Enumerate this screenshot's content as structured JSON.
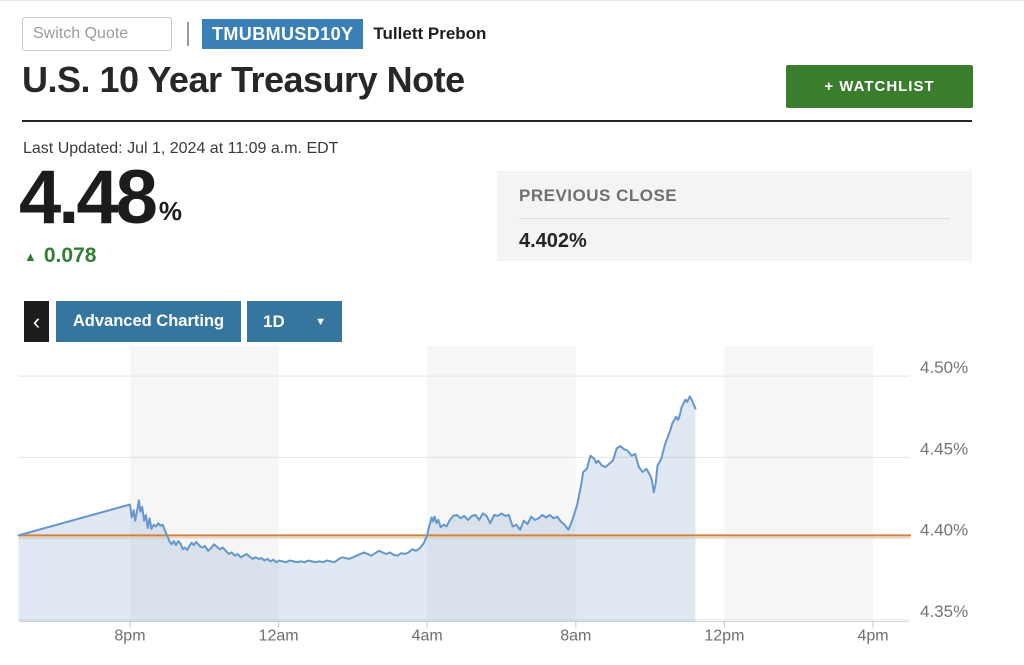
{
  "page": {
    "switch_quote_placeholder": "Switch Quote",
    "ticker": "TMUBMUSD10Y",
    "source": "Tullett Prebon",
    "title": "U.S. 10 Year Treasury Note",
    "watchlist_button": "+ WATCHLIST",
    "last_updated": "Last Updated: Jul 1, 2024 at 11:09 a.m. EDT",
    "price": "4.48",
    "price_unit": "%",
    "change_arrow": "▲",
    "change": "0.078",
    "previous_close_label": "PREVIOUS CLOSE",
    "previous_close_value": "4.402%",
    "toolbar": {
      "back": "‹",
      "advanced_charting": "Advanced Charting",
      "range": "1D",
      "range_caret": "▼"
    }
  },
  "colors": {
    "badge_blue": "#3a7fb5",
    "button_blue": "#36759d",
    "watchlist_green": "#3a7d2c",
    "change_green": "#2f7e33",
    "chart": {
      "line": "#6597cc",
      "fill": "rgba(116,155,201,0.22)",
      "band": "#f6f6f7",
      "grid": "#e4e4e4",
      "axis": "#d8d8d8",
      "tick": "#c4c4c4",
      "prev_close_line": "#cf8440",
      "prev_close_line_light": "#eed0ae",
      "y_label": "#757575",
      "x_label": "#6e6e6e"
    }
  },
  "chart_data": {
    "type": "area",
    "title": "U.S. 10 Year Treasury Note yield, 1D intraday",
    "x_unit": "hours since 5pm ET previous day",
    "xlim": [
      0,
      23.95
    ],
    "ylim": [
      4.349,
      4.5185
    ],
    "y_gridlines": [
      4.35,
      4.4,
      4.45,
      4.5
    ],
    "y_tick_labels": [
      "4.35%",
      "4.40%",
      "4.45%",
      "4.50%"
    ],
    "x_ticks": [
      {
        "t": 3,
        "label": "8pm"
      },
      {
        "t": 7,
        "label": "12am"
      },
      {
        "t": 11,
        "label": "4am"
      },
      {
        "t": 15,
        "label": "8am"
      },
      {
        "t": 19,
        "label": "12pm"
      },
      {
        "t": 23,
        "label": "4pm"
      }
    ],
    "shaded_bands_hours": [
      [
        3,
        7
      ],
      [
        11,
        15
      ],
      [
        19,
        23
      ]
    ],
    "previous_close": 4.402,
    "last_value": 4.48,
    "series": [
      {
        "name": "yield",
        "points": [
          [
            0,
            4.402
          ],
          [
            3,
            4.421
          ],
          [
            3.05,
            4.413
          ],
          [
            3.1,
            4.4175
          ],
          [
            3.14,
            4.411
          ],
          [
            3.18,
            4.4155
          ],
          [
            3.24,
            4.4235
          ],
          [
            3.28,
            4.4165
          ],
          [
            3.33,
            4.4195
          ],
          [
            3.38,
            4.411
          ],
          [
            3.43,
            4.4145
          ],
          [
            3.48,
            4.4065
          ],
          [
            3.53,
            4.4125
          ],
          [
            3.58,
            4.406
          ],
          [
            3.64,
            4.4085
          ],
          [
            3.7,
            4.4075
          ],
          [
            3.76,
            4.4095
          ],
          [
            3.82,
            4.408
          ],
          [
            3.88,
            4.4085
          ],
          [
            3.94,
            4.405
          ],
          [
            4,
            4.402
          ],
          [
            4.06,
            4.3985
          ],
          [
            4.12,
            4.3965
          ],
          [
            4.18,
            4.3985
          ],
          [
            4.24,
            4.396
          ],
          [
            4.3,
            4.3985
          ],
          [
            4.36,
            4.397
          ],
          [
            4.42,
            4.3935
          ],
          [
            4.48,
            4.3945
          ],
          [
            4.54,
            4.393
          ],
          [
            4.6,
            4.3955
          ],
          [
            4.66,
            4.3975
          ],
          [
            4.72,
            4.396
          ],
          [
            4.78,
            4.398
          ],
          [
            4.84,
            4.3965
          ],
          [
            4.9,
            4.395
          ],
          [
            4.96,
            4.3945
          ],
          [
            5.02,
            4.3955
          ],
          [
            5.1,
            4.3925
          ],
          [
            5.18,
            4.394
          ],
          [
            5.26,
            4.3965
          ],
          [
            5.34,
            4.395
          ],
          [
            5.42,
            4.3935
          ],
          [
            5.5,
            4.3945
          ],
          [
            5.58,
            4.3925
          ],
          [
            5.66,
            4.3905
          ],
          [
            5.74,
            4.3915
          ],
          [
            5.82,
            4.3895
          ],
          [
            5.9,
            4.3905
          ],
          [
            5.98,
            4.3885
          ],
          [
            6.06,
            4.3895
          ],
          [
            6.14,
            4.3905
          ],
          [
            6.22,
            4.389
          ],
          [
            6.3,
            4.3875
          ],
          [
            6.38,
            4.3885
          ],
          [
            6.46,
            4.3875
          ],
          [
            6.54,
            4.388
          ],
          [
            6.62,
            4.3865
          ],
          [
            6.7,
            4.3875
          ],
          [
            6.78,
            4.386
          ],
          [
            6.86,
            4.387
          ],
          [
            6.94,
            4.3855
          ],
          [
            7.02,
            4.3865
          ],
          [
            7.1,
            4.386
          ],
          [
            7.2,
            4.3855
          ],
          [
            7.3,
            4.3865
          ],
          [
            7.4,
            4.386
          ],
          [
            7.5,
            4.3855
          ],
          [
            7.6,
            4.386
          ],
          [
            7.7,
            4.3855
          ],
          [
            7.8,
            4.3865
          ],
          [
            7.9,
            4.386
          ],
          [
            8,
            4.3855
          ],
          [
            8.1,
            4.386
          ],
          [
            8.2,
            4.3855
          ],
          [
            8.3,
            4.3865
          ],
          [
            8.4,
            4.386
          ],
          [
            8.5,
            4.3855
          ],
          [
            8.6,
            4.387
          ],
          [
            8.7,
            4.3885
          ],
          [
            8.8,
            4.388
          ],
          [
            8.9,
            4.3875
          ],
          [
            9,
            4.3885
          ],
          [
            9.1,
            4.3895
          ],
          [
            9.2,
            4.3905
          ],
          [
            9.3,
            4.3915
          ],
          [
            9.4,
            4.3905
          ],
          [
            9.5,
            4.3895
          ],
          [
            9.6,
            4.391
          ],
          [
            9.7,
            4.3925
          ],
          [
            9.8,
            4.3915
          ],
          [
            9.9,
            4.3905
          ],
          [
            10,
            4.3915
          ],
          [
            10.1,
            4.39
          ],
          [
            10.2,
            4.3895
          ],
          [
            10.3,
            4.391
          ],
          [
            10.4,
            4.3905
          ],
          [
            10.5,
            4.3915
          ],
          [
            10.6,
            4.3935
          ],
          [
            10.7,
            4.3925
          ],
          [
            10.8,
            4.394
          ],
          [
            10.9,
            4.397
          ],
          [
            11,
            4.402
          ],
          [
            11.04,
            4.4065
          ],
          [
            11.08,
            4.4095
          ],
          [
            11.12,
            4.413
          ],
          [
            11.16,
            4.4105
          ],
          [
            11.2,
            4.4135
          ],
          [
            11.25,
            4.4095
          ],
          [
            11.3,
            4.4115
          ],
          [
            11.36,
            4.407
          ],
          [
            11.44,
            4.4085
          ],
          [
            11.52,
            4.4075
          ],
          [
            11.6,
            4.411
          ],
          [
            11.7,
            4.414
          ],
          [
            11.8,
            4.4145
          ],
          [
            11.9,
            4.4125
          ],
          [
            12,
            4.414
          ],
          [
            12.1,
            4.4115
          ],
          [
            12.2,
            4.414
          ],
          [
            12.3,
            4.4145
          ],
          [
            12.4,
            4.4115
          ],
          [
            12.5,
            4.4155
          ],
          [
            12.6,
            4.414
          ],
          [
            12.7,
            4.4095
          ],
          [
            12.8,
            4.4145
          ],
          [
            12.9,
            4.414
          ],
          [
            13,
            4.4155
          ],
          [
            13.1,
            4.414
          ],
          [
            13.2,
            4.4145
          ],
          [
            13.3,
            4.4075
          ],
          [
            13.4,
            4.4085
          ],
          [
            13.5,
            4.4055
          ],
          [
            13.6,
            4.411
          ],
          [
            13.7,
            4.409
          ],
          [
            13.8,
            4.4135
          ],
          [
            13.9,
            4.4115
          ],
          [
            14,
            4.4125
          ],
          [
            14.1,
            4.4145
          ],
          [
            14.2,
            4.413
          ],
          [
            14.3,
            4.4145
          ],
          [
            14.4,
            4.4125
          ],
          [
            14.5,
            4.4135
          ],
          [
            14.6,
            4.4105
          ],
          [
            14.7,
            4.4085
          ],
          [
            14.8,
            4.4055
          ],
          [
            14.9,
            4.411
          ],
          [
            15,
            4.418
          ],
          [
            15.05,
            4.422
          ],
          [
            15.1,
            4.428
          ],
          [
            15.15,
            4.434
          ],
          [
            15.2,
            4.441
          ],
          [
            15.3,
            4.443
          ],
          [
            15.35,
            4.4475
          ],
          [
            15.4,
            4.451
          ],
          [
            15.5,
            4.449
          ],
          [
            15.55,
            4.4465
          ],
          [
            15.6,
            4.448
          ],
          [
            15.7,
            4.445
          ],
          [
            15.8,
            4.444
          ],
          [
            15.9,
            4.446
          ],
          [
            16,
            4.448
          ],
          [
            16.1,
            4.4555
          ],
          [
            16.2,
            4.457
          ],
          [
            16.3,
            4.455
          ],
          [
            16.4,
            4.454
          ],
          [
            16.5,
            4.451
          ],
          [
            16.6,
            4.452
          ],
          [
            16.7,
            4.444
          ],
          [
            16.8,
            4.441
          ],
          [
            16.9,
            4.443
          ],
          [
            17,
            4.439
          ],
          [
            17.05,
            4.436
          ],
          [
            17.1,
            4.4285
          ],
          [
            17.15,
            4.434
          ],
          [
            17.2,
            4.445
          ],
          [
            17.3,
            4.449
          ],
          [
            17.4,
            4.458
          ],
          [
            17.5,
            4.464
          ],
          [
            17.55,
            4.467
          ],
          [
            17.6,
            4.471
          ],
          [
            17.7,
            4.475
          ],
          [
            17.75,
            4.473
          ],
          [
            17.8,
            4.476
          ],
          [
            17.85,
            4.481
          ],
          [
            17.9,
            4.483
          ],
          [
            17.95,
            4.4855
          ],
          [
            18,
            4.484
          ],
          [
            18.07,
            4.4875
          ],
          [
            18.14,
            4.4845
          ],
          [
            18.22,
            4.48
          ]
        ]
      }
    ]
  }
}
